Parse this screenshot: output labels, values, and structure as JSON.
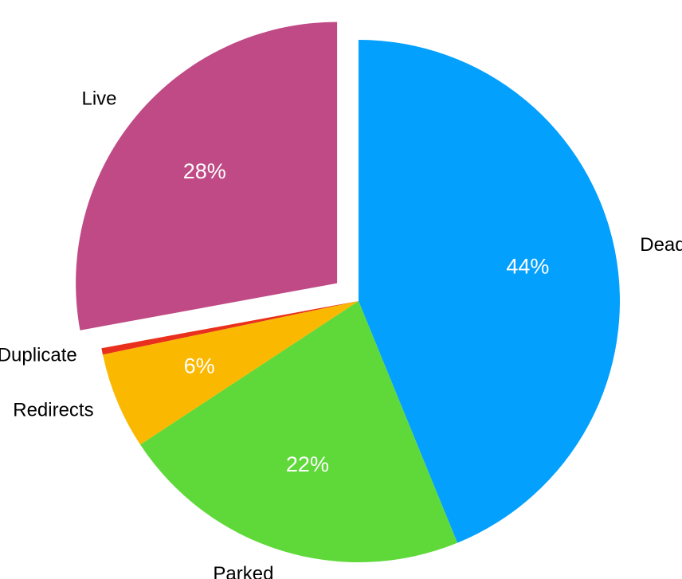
{
  "chart_data": {
    "type": "pie",
    "categories": [
      "Dead",
      "Parked",
      "Redirects",
      "Duplicate",
      "Live"
    ],
    "values": [
      44,
      22,
      6,
      0.4,
      28
    ],
    "value_labels": [
      "44%",
      "22%",
      "6%",
      null,
      "28%"
    ],
    "colors": [
      "#03a0fe",
      "#5fd93a",
      "#fbb800",
      "#e8301c",
      "#c04a86"
    ],
    "exploded": [
      false,
      false,
      false,
      false,
      true
    ]
  }
}
